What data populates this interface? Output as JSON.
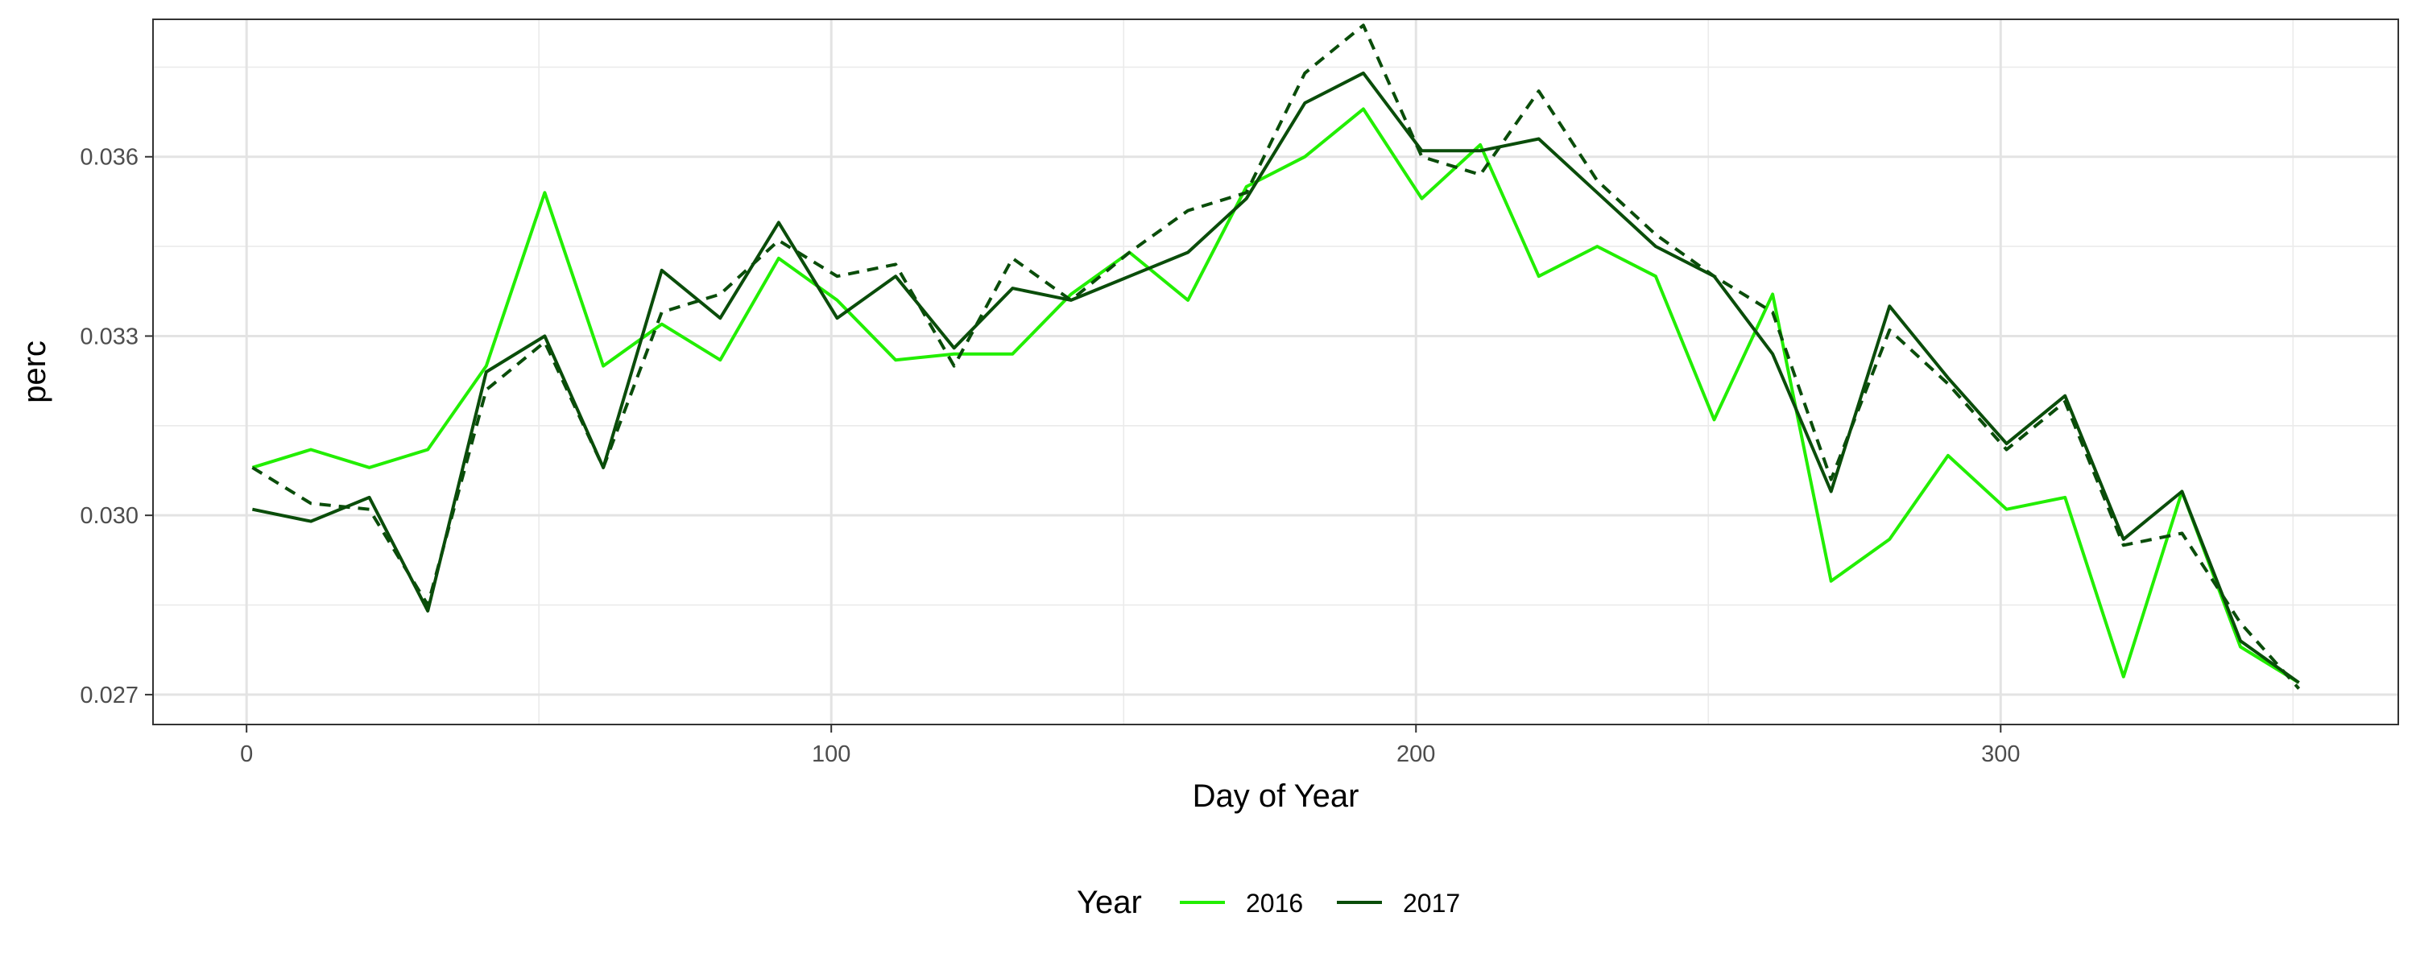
{
  "chart_data": {
    "type": "line",
    "xlabel": "Day of Year",
    "ylabel": "perc",
    "xlim": [
      -16,
      368
    ],
    "ylim": [
      0.0265,
      0.0383
    ],
    "x_ticks": [
      0,
      100,
      200,
      300
    ],
    "x_tick_labels": [
      "0",
      "100",
      "200",
      "300"
    ],
    "y_ticks": [
      0.027,
      0.03,
      0.033,
      0.036
    ],
    "y_tick_labels": [
      "0.027",
      "0.030",
      "0.033",
      "0.036"
    ],
    "grid": true,
    "legend": {
      "title": "Year",
      "position": "bottom"
    },
    "x": [
      1,
      11,
      21,
      31,
      41,
      51,
      61,
      71,
      81,
      91,
      101,
      111,
      121,
      131,
      141,
      151,
      161,
      171,
      181,
      191,
      201,
      211,
      221,
      231,
      241,
      251,
      261,
      271,
      281,
      291,
      301,
      311,
      321,
      331,
      341,
      351
    ],
    "series": [
      {
        "name": "2016",
        "color": "#22ee00",
        "dash": "solid",
        "in_legend": true,
        "values": [
          0.0308,
          0.0311,
          0.0308,
          0.0311,
          0.0325,
          0.0354,
          0.0325,
          0.0332,
          0.0326,
          0.0343,
          0.0336,
          0.0326,
          0.0327,
          0.0327,
          0.0337,
          0.0344,
          0.0336,
          0.0355,
          0.036,
          0.0368,
          0.0353,
          0.0362,
          0.034,
          0.0345,
          0.034,
          0.0316,
          0.0337,
          0.0289,
          0.0296,
          0.031,
          0.0301,
          0.0303,
          0.0273,
          0.0304,
          0.0278,
          0.0272
        ]
      },
      {
        "name": "2017",
        "color": "#0a4d0a",
        "dash": "solid",
        "in_legend": true,
        "values": [
          0.0301,
          0.0299,
          0.0303,
          0.0284,
          0.0324,
          0.033,
          0.0308,
          0.0341,
          0.0333,
          0.0349,
          0.0333,
          0.034,
          0.0328,
          0.0338,
          0.0336,
          0.034,
          0.0344,
          0.0353,
          0.0369,
          0.0374,
          0.0361,
          0.0361,
          0.0363,
          0.0354,
          0.0345,
          0.034,
          0.0327,
          0.0304,
          0.0335,
          0.0323,
          0.0312,
          0.032,
          0.0296,
          0.0304,
          0.0279,
          0.0272
        ]
      },
      {
        "name": "",
        "color": "#0a4d0a",
        "dash": "dashed",
        "in_legend": false,
        "values": [
          0.0308,
          0.0302,
          0.0301,
          0.0285,
          0.0321,
          0.0329,
          0.0308,
          0.0334,
          0.0337,
          0.0346,
          0.034,
          0.0342,
          0.0325,
          0.0343,
          0.0336,
          0.0344,
          0.0351,
          0.0354,
          0.0374,
          0.0382,
          0.036,
          0.0357,
          0.0371,
          0.0356,
          0.0347,
          0.034,
          0.0334,
          0.0306,
          0.0331,
          0.0322,
          0.0311,
          0.0319,
          0.0295,
          0.0297,
          0.0282,
          0.0271
        ]
      }
    ]
  }
}
